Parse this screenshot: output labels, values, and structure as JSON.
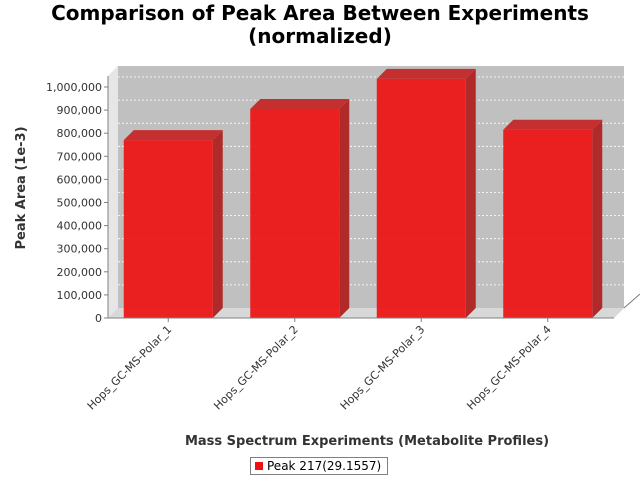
{
  "chart_data": {
    "type": "bar",
    "title_lines": [
      "Comparison of Peak Area Between Experiments",
      "(normalized)"
    ],
    "xlabel": "Mass Spectrum Experiments (Metabolite Profiles)",
    "ylabel": "Peak Area (1e-3)",
    "categories": [
      "Hops_GC-MS-Polar_1",
      "Hops_GC-MS-Polar_2",
      "Hops_GC-MS-Polar_3",
      "Hops_GC-MS-Polar_4"
    ],
    "series": [
      {
        "name": "Peak 217(29.1557)",
        "values": [
          770000,
          905000,
          1035000,
          815000
        ],
        "color": "#ee1111"
      }
    ],
    "ylim": [
      0,
      1000000
    ],
    "yticks": [
      0,
      100000,
      200000,
      300000,
      400000,
      500000,
      600000,
      700000,
      800000,
      900000,
      1000000
    ],
    "ytick_labels": [
      "0",
      "100,000",
      "200,000",
      "300,000",
      "400,000",
      "500,000",
      "600,000",
      "700,000",
      "800,000",
      "900,000",
      "1,000,000"
    ],
    "grid": true,
    "legend_position": "bottom",
    "plot_background": "#c0c0c0",
    "three_d": true
  }
}
